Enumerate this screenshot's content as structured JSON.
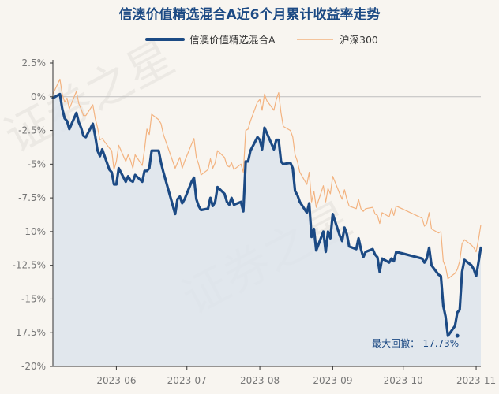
{
  "chart_data": {
    "type": "line",
    "title": "信澳价值精选混合A近6个月累计收益率走势",
    "legend_position": "top",
    "grid": false,
    "watermark": "证券之星",
    "colors": {
      "fund": "#1c4a84",
      "index": "#f3b380",
      "area": "#dde4ec"
    },
    "x_tick_labels": [
      "2023-06",
      "2023-07",
      "2023-08",
      "2023-09",
      "2023-10",
      "2023-11"
    ],
    "y_tick_labels": [
      "2.5%",
      "0%",
      "-2.5%",
      "-5%",
      "-7.5%",
      "-10%",
      "-12.5%",
      "-15%",
      "-17.5%",
      "-20%"
    ],
    "ylim": [
      -20,
      2.5
    ],
    "annotation": {
      "text": "最大回撤：-17.73%",
      "x": "2023-10-24",
      "y": -17.73
    },
    "x": [
      "2023-05-05",
      "2023-05-08",
      "2023-05-09",
      "2023-05-10",
      "2023-05-11",
      "2023-05-12",
      "2023-05-15",
      "2023-05-16",
      "2023-05-17",
      "2023-05-18",
      "2023-05-19",
      "2023-05-22",
      "2023-05-23",
      "2023-05-24",
      "2023-05-25",
      "2023-05-26",
      "2023-05-29",
      "2023-05-30",
      "2023-05-31",
      "2023-06-01",
      "2023-06-02",
      "2023-06-05",
      "2023-06-06",
      "2023-06-07",
      "2023-06-08",
      "2023-06-09",
      "2023-06-12",
      "2023-06-13",
      "2023-06-14",
      "2023-06-15",
      "2023-06-16",
      "2023-06-19",
      "2023-06-20",
      "2023-06-21",
      "2023-06-26",
      "2023-06-27",
      "2023-06-28",
      "2023-06-29",
      "2023-06-30",
      "2023-07-03",
      "2023-07-04",
      "2023-07-05",
      "2023-07-06",
      "2023-07-07",
      "2023-07-10",
      "2023-07-11",
      "2023-07-12",
      "2023-07-13",
      "2023-07-14",
      "2023-07-17",
      "2023-07-18",
      "2023-07-19",
      "2023-07-20",
      "2023-07-21",
      "2023-07-24",
      "2023-07-25",
      "2023-07-26",
      "2023-07-27",
      "2023-07-28",
      "2023-07-31",
      "2023-08-01",
      "2023-08-02",
      "2023-08-03",
      "2023-08-04",
      "2023-08-07",
      "2023-08-08",
      "2023-08-09",
      "2023-08-10",
      "2023-08-11",
      "2023-08-14",
      "2023-08-15",
      "2023-08-16",
      "2023-08-17",
      "2023-08-18",
      "2023-08-21",
      "2023-08-22",
      "2023-08-23",
      "2023-08-24",
      "2023-08-25",
      "2023-08-28",
      "2023-08-29",
      "2023-08-30",
      "2023-08-31",
      "2023-09-01",
      "2023-09-04",
      "2023-09-05",
      "2023-09-06",
      "2023-09-07",
      "2023-09-08",
      "2023-09-11",
      "2023-09-12",
      "2023-09-13",
      "2023-09-14",
      "2023-09-15",
      "2023-09-18",
      "2023-09-19",
      "2023-09-20",
      "2023-09-21",
      "2023-09-22",
      "2023-09-25",
      "2023-09-26",
      "2023-09-27",
      "2023-09-28",
      "2023-10-09",
      "2023-10-10",
      "2023-10-11",
      "2023-10-12",
      "2023-10-13",
      "2023-10-16",
      "2023-10-17",
      "2023-10-18",
      "2023-10-19",
      "2023-10-20",
      "2023-10-23",
      "2023-10-24",
      "2023-10-25",
      "2023-10-26",
      "2023-10-27",
      "2023-10-30",
      "2023-10-31",
      "2023-11-01",
      "2023-11-02",
      "2023-11-03"
    ],
    "series": [
      {
        "name": "信澳价值精选混合A",
        "values": [
          -0.1,
          0.2,
          -0.9,
          -1.6,
          -1.8,
          -2.4,
          -1.2,
          -1.9,
          -2.3,
          -2.9,
          -3.0,
          -2.0,
          -2.9,
          -4.0,
          -4.4,
          -3.9,
          -5.4,
          -5.6,
          -6.5,
          -6.5,
          -5.3,
          -6.3,
          -5.9,
          -6.2,
          -6.3,
          -5.8,
          -6.3,
          -5.5,
          -5.5,
          -5.3,
          -4.0,
          -4.0,
          -4.9,
          -5.6,
          -8.7,
          -7.6,
          -7.4,
          -7.9,
          -7.6,
          -6.3,
          -6.0,
          -7.6,
          -8.1,
          -8.4,
          -8.3,
          -7.5,
          -8.1,
          -7.8,
          -6.7,
          -7.2,
          -7.8,
          -8.0,
          -7.5,
          -8.0,
          -7.8,
          -8.5,
          -4.8,
          -4.8,
          -4.0,
          -3.0,
          -3.2,
          -3.9,
          -2.3,
          -2.7,
          -3.9,
          -3.2,
          -3.2,
          -4.8,
          -5.0,
          -4.9,
          -5.3,
          -7.0,
          -7.3,
          -7.8,
          -8.6,
          -7.9,
          -10.4,
          -9.8,
          -11.4,
          -10.0,
          -11.5,
          -10.0,
          -10.5,
          -8.7,
          -10.3,
          -10.7,
          -9.7,
          -10.2,
          -11.1,
          -11.3,
          -10.5,
          -11.3,
          -11.9,
          -11.5,
          -11.3,
          -11.7,
          -11.9,
          -13.0,
          -12.0,
          -12.3,
          -12.0,
          -12.2,
          -11.5,
          -12.0,
          -12.3,
          -12.0,
          -11.2,
          -12.5,
          -13.2,
          -13.3,
          -15.5,
          -16.3,
          -17.73,
          -17.0,
          -16.0,
          -15.8,
          -13.0,
          -12.1,
          -12.5,
          -12.8,
          -13.3,
          -12.3,
          -11.2
        ]
      },
      {
        "name": "沪深300",
        "values": [
          0.2,
          1.3,
          0.2,
          -0.4,
          -0.1,
          -0.9,
          0.4,
          -0.5,
          -0.9,
          -1.4,
          -1.4,
          -0.6,
          -1.6,
          -2.3,
          -3.2,
          -3.1,
          -3.8,
          -4.0,
          -5.4,
          -4.8,
          -3.6,
          -4.8,
          -4.3,
          -4.7,
          -5.3,
          -4.3,
          -5.1,
          -3.9,
          -2.4,
          -2.8,
          -1.3,
          -1.7,
          -2.0,
          -2.8,
          -5.3,
          -4.9,
          -4.5,
          -5.3,
          -4.8,
          -3.5,
          -3.1,
          -4.5,
          -5.0,
          -5.8,
          -5.4,
          -4.6,
          -5.3,
          -4.9,
          -4.0,
          -4.5,
          -5.1,
          -5.2,
          -4.9,
          -5.4,
          -5.0,
          -5.6,
          -2.5,
          -2.4,
          -1.8,
          -0.4,
          -0.2,
          -1.0,
          0.2,
          -0.3,
          -1.0,
          -0.2,
          0.3,
          -1.2,
          -2.2,
          -2.5,
          -3.0,
          -4.3,
          -4.8,
          -5.6,
          -6.5,
          -5.6,
          -7.8,
          -7.0,
          -8.2,
          -6.6,
          -7.8,
          -6.8,
          -7.2,
          -5.9,
          -7.2,
          -7.6,
          -6.9,
          -7.6,
          -8.1,
          -8.3,
          -7.6,
          -8.3,
          -8.5,
          -8.3,
          -8.2,
          -8.7,
          -8.8,
          -9.4,
          -8.6,
          -8.9,
          -8.3,
          -8.8,
          -8.1,
          -9.0,
          -9.6,
          -9.4,
          -8.6,
          -9.8,
          -10.1,
          -10.0,
          -12.2,
          -12.6,
          -13.5,
          -13.1,
          -12.8,
          -12.2,
          -10.9,
          -10.6,
          -11.0,
          -11.2,
          -11.5,
          -10.6,
          -9.5
        ]
      }
    ]
  }
}
